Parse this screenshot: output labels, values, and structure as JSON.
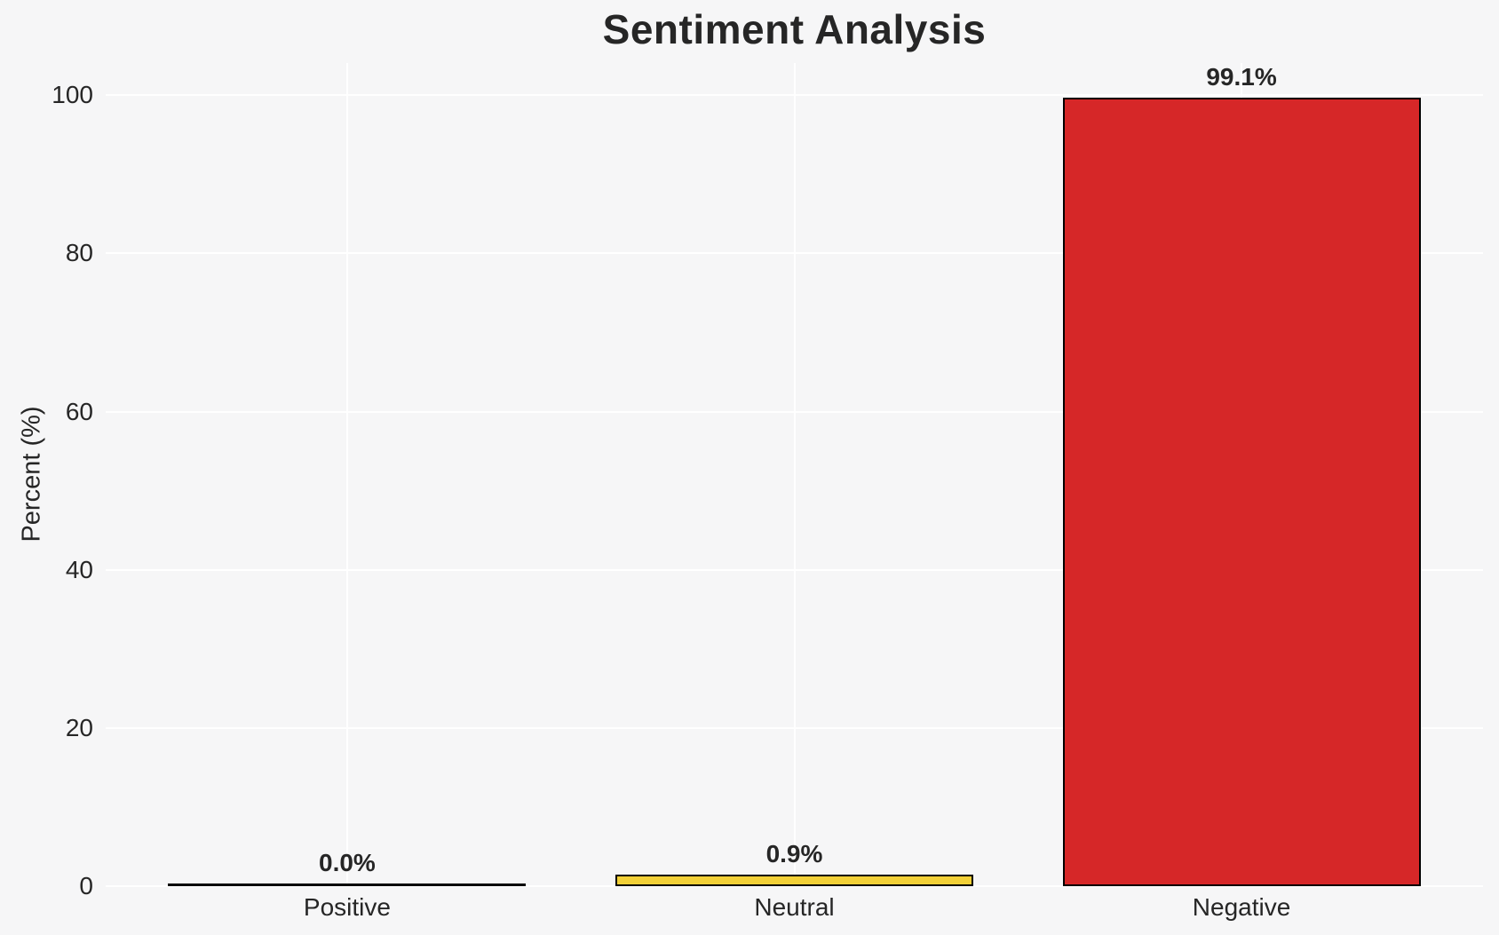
{
  "chart_data": {
    "type": "bar",
    "title": "Sentiment Analysis",
    "ylabel": "Percent (%)",
    "xlabel": "",
    "categories": [
      "Positive",
      "Neutral",
      "Negative"
    ],
    "values": [
      0.0,
      0.9,
      99.1
    ],
    "value_labels": [
      "0.0%",
      "0.9%",
      "99.1%"
    ],
    "bar_colors": [
      "#000000",
      "#F2D037",
      "#D62728"
    ],
    "bar_edge_color": "#000000",
    "yticks": [
      0,
      20,
      40,
      60,
      80,
      100
    ],
    "ylim": [
      0,
      104.06
    ],
    "grid": true,
    "gridline_color": "#ffffff",
    "background_color": "#f6f6f7",
    "text_color": "#262626",
    "legend_position": "none"
  }
}
